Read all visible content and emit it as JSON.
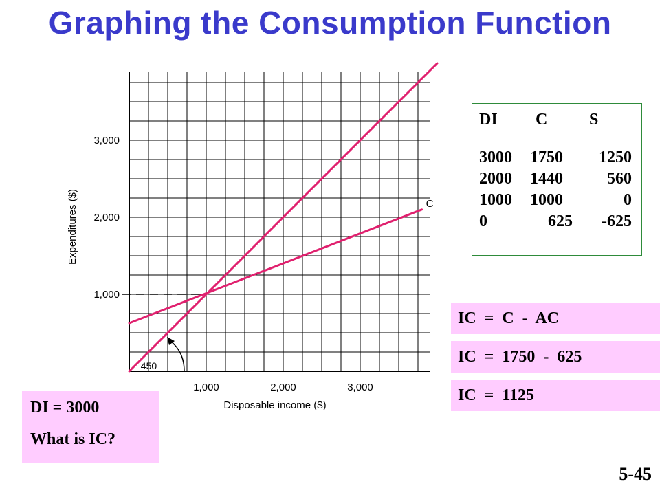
{
  "title": "Graphing the Consumption Function",
  "page_number": "5-45",
  "chart_data": {
    "type": "line",
    "xlabel": "Disposable income ($)",
    "ylabel": "Expenditures ($)",
    "xlim": [
      0,
      4000
    ],
    "ylim": [
      0,
      4000
    ],
    "x_ticks": [
      "1,000",
      "2,000",
      "3,000"
    ],
    "y_ticks": [
      "1,000",
      "2,000",
      "3,000"
    ],
    "x_tick_values": [
      1000,
      2000,
      3000
    ],
    "y_tick_values": [
      1000,
      2000,
      3000
    ],
    "grid": true,
    "series": [
      {
        "x": [
          0,
          4000
        ],
        "y": [
          0,
          4000
        ],
        "color": "#e0206e"
      },
      {
        "name": "C",
        "x": [
          0,
          3800
        ],
        "y": [
          625,
          2100
        ],
        "color": "#e0206e"
      }
    ],
    "annotations": [
      {
        "text": "450",
        "x": 400,
        "y": 80
      },
      {
        "text": "",
        "type": "dashed-line",
        "x": [
          0,
          1000
        ],
        "y": [
          1000,
          1000
        ]
      }
    ]
  },
  "table": {
    "headers": [
      "DI",
      "C",
      "S"
    ],
    "rows": [
      [
        "3000",
        "1750",
        "1250"
      ],
      [
        "2000",
        "1440",
        "560"
      ],
      [
        "1000",
        "1000",
        "0"
      ],
      [
        "0",
        "625",
        "-625"
      ]
    ]
  },
  "equations": [
    "IC  =  C  -  AC",
    "IC  =  1750  -  625",
    "IC  =  1125"
  ],
  "question": {
    "line1": "DI = 3000",
    "line2": "What is IC?"
  }
}
